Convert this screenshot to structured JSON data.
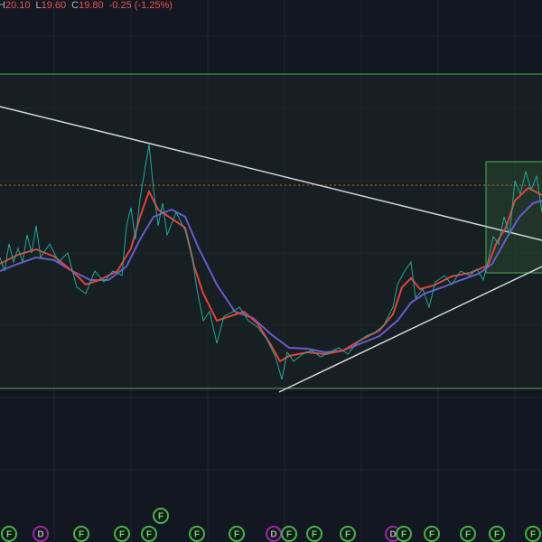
{
  "header": {
    "ohlc": [
      {
        "label": "H",
        "value": "20.10"
      },
      {
        "label": "L",
        "value": "19.60"
      },
      {
        "label": "C",
        "value": "19.80"
      }
    ],
    "change": "-0.25 (-1.25%)"
  },
  "events": [
    "F",
    "D",
    "F",
    "F",
    "F",
    "F",
    "F",
    "F",
    "D",
    "F",
    "F",
    "F",
    "D",
    "F",
    "F",
    "F",
    "F",
    "F"
  ]
}
